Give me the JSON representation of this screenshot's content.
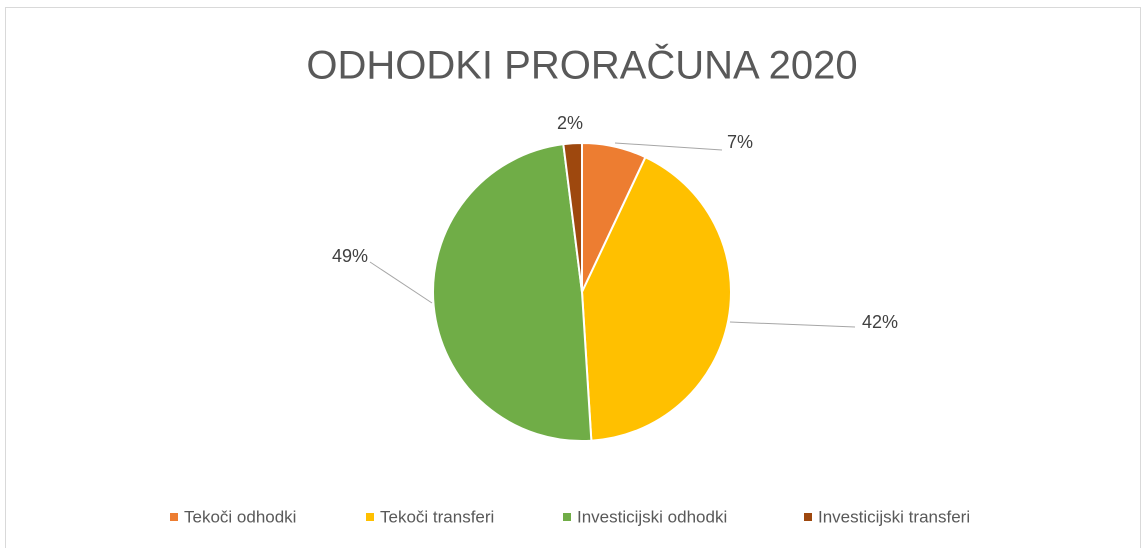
{
  "chart_data": {
    "type": "pie",
    "title": "ODHODKI PRORAČUNA 2020",
    "categories": [
      "Tekoči odhodki",
      "Tekoči transferi",
      "Investicijski odhodki",
      "Investicijski transferi"
    ],
    "values": [
      7,
      42,
      49,
      2
    ],
    "value_labels": [
      "7%",
      "42%",
      "49%",
      "2%"
    ],
    "colors": [
      "#ed7d31",
      "#ffc000",
      "#70ad47",
      "#9e480e"
    ],
    "legend": "bottom"
  }
}
